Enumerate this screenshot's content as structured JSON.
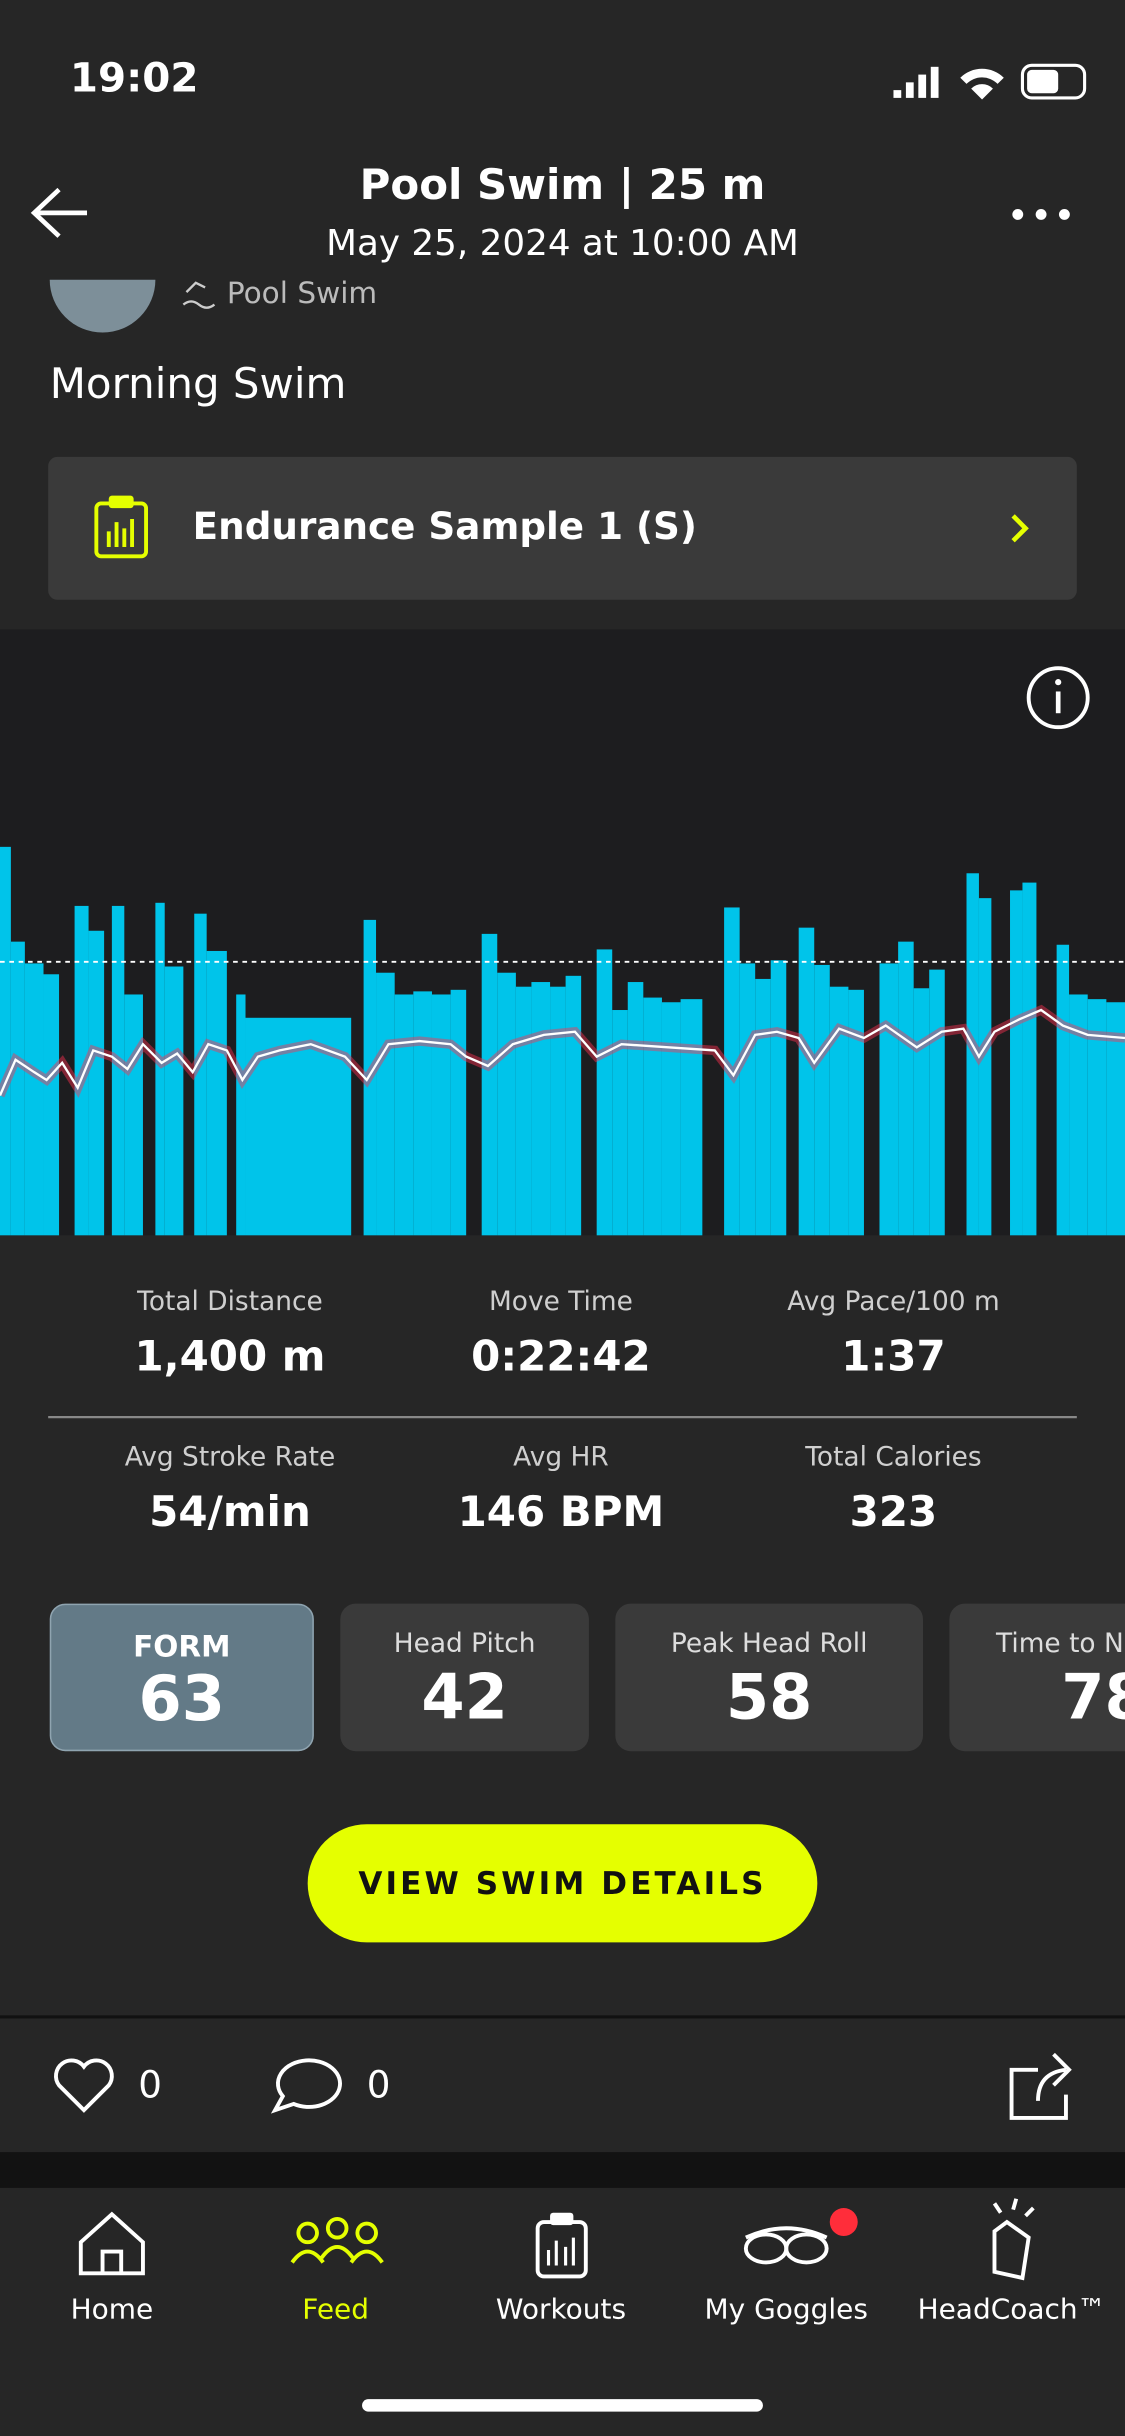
{
  "status": {
    "time": "19:02"
  },
  "header": {
    "title": "Pool Swim | 25 m",
    "subtitle": "May 25, 2024 at 10:00 AM"
  },
  "activity": {
    "type": "Pool Swim",
    "name": "Morning Swim",
    "workout": "Endurance Sample 1 (S)"
  },
  "stats": [
    {
      "label": "Total Distance",
      "value": "1,400 m"
    },
    {
      "label": "Move Time",
      "value": "0:22:42"
    },
    {
      "label": "Avg Pace/100 m",
      "value": "1:37"
    },
    {
      "label": "Avg Stroke Rate",
      "value": "54/min"
    },
    {
      "label": "Avg HR",
      "value": "146 BPM"
    },
    {
      "label": "Total Calories",
      "value": "323"
    }
  ],
  "metrics": [
    {
      "label": "FORM",
      "value": "63"
    },
    {
      "label": "Head Pitch",
      "value": "42"
    },
    {
      "label": "Peak Head Roll",
      "value": "58"
    },
    {
      "label": "Time to N",
      "value": "78"
    }
  ],
  "button": "VIEW SWIM DETAILS",
  "social": {
    "likes": "0",
    "comments": "0"
  },
  "nav": [
    "Home",
    "Feed",
    "Workouts",
    "My Goggles",
    "HeadCoach™"
  ]
}
